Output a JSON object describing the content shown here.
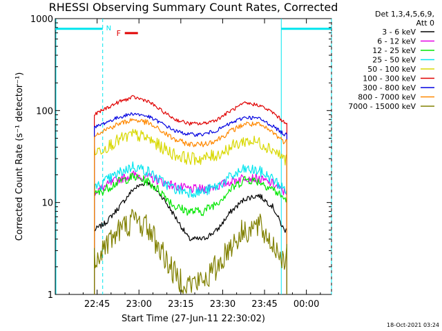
{
  "chart_data": {
    "type": "line",
    "title": "RHESSI Observing Summary Count Rates, Corrected",
    "xlabel": "Start Time (27-Jun-11 22:30:02)",
    "ylabel": "Corrected Count Rate (s⁻¹ detector⁻¹)",
    "y_scale": "log",
    "ylim": [
      1,
      1000
    ],
    "xlim": [
      "22:30",
      "00:09"
    ],
    "x_ticks": [
      "22:45",
      "23:00",
      "23:15",
      "23:30",
      "23:45",
      "00:00"
    ],
    "y_ticks": [
      "1",
      "10",
      "100",
      "1000"
    ],
    "legend_header": [
      "Det 1,3,4,5,6,9,",
      "Att 0"
    ],
    "legend_position": "right",
    "timestamp": "18-Oct-2021 03:24",
    "flags": [
      {
        "label": "N",
        "color": "#00e5ee"
      },
      {
        "label": "F",
        "color": "#e00000"
      }
    ],
    "night_intervals": [
      {
        "start": "22:30",
        "end": "22:47"
      },
      {
        "start": "23:51",
        "end": "00:09"
      }
    ],
    "data_window": {
      "start": "22:44",
      "end": "23:53"
    },
    "shape_x": [
      "22:44",
      "22:48",
      "22:53",
      "22:58",
      "23:03",
      "23:08",
      "23:13",
      "23:18",
      "23:23",
      "23:28",
      "23:33",
      "23:38",
      "23:43",
      "23:48",
      "23:52"
    ],
    "series": [
      {
        "name": "3 - 6 keV",
        "color": "#000000",
        "values": [
          5,
          6,
          9,
          14,
          17,
          12,
          7,
          4,
          4,
          5,
          8,
          11,
          12,
          9,
          5
        ]
      },
      {
        "name": "6 - 12 keV",
        "color": "#e600e6",
        "values": [
          13,
          15,
          18,
          20,
          19,
          17,
          15,
          14,
          14,
          15,
          17,
          19,
          18,
          16,
          13
        ]
      },
      {
        "name": "12 - 25 keV",
        "color": "#00e600",
        "values": [
          12,
          14,
          17,
          19,
          17,
          13,
          9,
          8,
          8,
          10,
          14,
          18,
          17,
          14,
          11
        ]
      },
      {
        "name": "25 - 50 keV",
        "color": "#00e5ee",
        "values": [
          14,
          17,
          21,
          25,
          22,
          17,
          14,
          13,
          13,
          15,
          19,
          23,
          22,
          18,
          14
        ]
      },
      {
        "name": "50 - 100 keV",
        "color": "#d8d800",
        "values": [
          35,
          40,
          48,
          55,
          50,
          40,
          33,
          30,
          30,
          33,
          40,
          47,
          45,
          38,
          30
        ]
      },
      {
        "name": "100 - 300 keV",
        "color": "#e00000",
        "values": [
          90,
          105,
          125,
          140,
          128,
          100,
          80,
          72,
          72,
          80,
          100,
          120,
          115,
          95,
          75
        ]
      },
      {
        "name": "300 - 800 keV",
        "color": "#0000e0",
        "values": [
          65,
          74,
          85,
          93,
          87,
          73,
          60,
          55,
          55,
          61,
          73,
          85,
          82,
          68,
          55
        ]
      },
      {
        "name": "800 - 7000 keV",
        "color": "#ff8800",
        "values": [
          55,
          62,
          72,
          80,
          74,
          60,
          48,
          43,
          43,
          48,
          60,
          72,
          70,
          58,
          46
        ]
      },
      {
        "name": "7000 - 15000 keV",
        "color": "#808000",
        "values": [
          2.5,
          3.5,
          5,
          6.5,
          5.5,
          3,
          1.6,
          1.3,
          1.4,
          2,
          3.5,
          5,
          5.5,
          3.5,
          2.5
        ]
      }
    ]
  }
}
